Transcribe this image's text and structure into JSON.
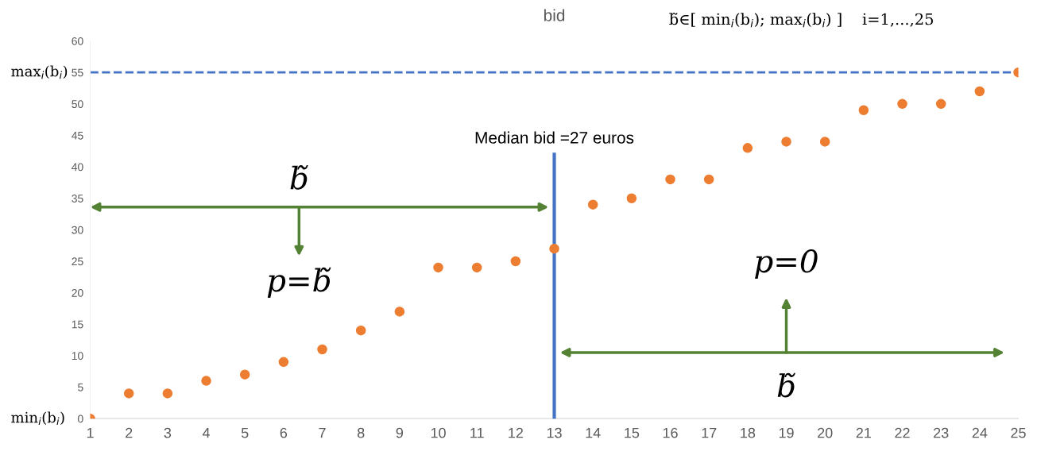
{
  "chart_data": {
    "type": "scatter",
    "title": "bid",
    "subtitle": "b̃∈[ min$_{i}$(b$_{i}$); max$_{i}$(b$_{i}$) ]    i=1,...,25",
    "x": [
      1,
      2,
      3,
      4,
      5,
      6,
      7,
      8,
      9,
      10,
      11,
      12,
      13,
      14,
      15,
      16,
      17,
      18,
      19,
      20,
      21,
      22,
      23,
      24,
      25
    ],
    "series": [
      {
        "color": "#ed7d31",
        "values": [
          0,
          4,
          4,
          6,
          7,
          9,
          11,
          14,
          17,
          24,
          24,
          25,
          27,
          34,
          35,
          38,
          38,
          43,
          44,
          44,
          49,
          50,
          50,
          52,
          55
        ]
      }
    ],
    "xlim": [
      1,
      25
    ],
    "xticks": [
      1,
      2,
      3,
      4,
      5,
      6,
      7,
      8,
      9,
      10,
      11,
      12,
      13,
      14,
      15,
      16,
      17,
      18,
      19,
      20,
      21,
      22,
      23,
      24,
      25
    ],
    "ylim": [
      0,
      60
    ],
    "yticks": [
      0,
      5,
      10,
      15,
      20,
      25,
      30,
      35,
      40,
      45,
      50,
      55,
      60
    ],
    "marker": "circle",
    "grid": false,
    "legend": false,
    "ref_lines": [
      {
        "axis": "y",
        "value": 55,
        "label": "max$_{i}$(b$_{i}$)",
        "color": "#4472c4",
        "line_style": "dashed"
      },
      {
        "axis": "x",
        "value": 13,
        "color": "#4472c4",
        "line_style": "solid"
      }
    ],
    "annotations": [
      {
        "text": "min$_{i}$(b$_{i}$)",
        "x": 1,
        "y": 0
      },
      "b̃",
      "p=b̃",
      "p=0",
      "b̃",
      "Median bid =27 euros"
    ]
  }
}
